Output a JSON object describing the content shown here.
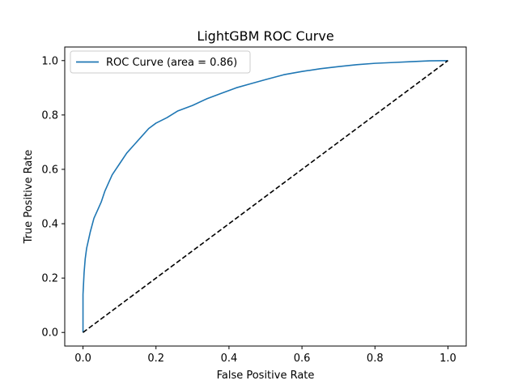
{
  "chart_data": {
    "type": "line",
    "title": "LightGBM ROC Curve",
    "xlabel": "False Positive Rate",
    "ylabel": "True Positive Rate",
    "xlim": [
      -0.05,
      1.05
    ],
    "ylim": [
      -0.05,
      1.05
    ],
    "x_ticks": [
      "0.0",
      "0.2",
      "0.4",
      "0.6",
      "0.8",
      "1.0"
    ],
    "y_ticks": [
      "0.0",
      "0.2",
      "0.4",
      "0.6",
      "0.8",
      "1.0"
    ],
    "grid": false,
    "legend_position": "top-left",
    "series": [
      {
        "name": "ROC Curve (area = 0.86)",
        "color": "#1f77b4",
        "style": "solid",
        "x": [
          0.0,
          0.0,
          0.003,
          0.006,
          0.01,
          0.015,
          0.02,
          0.03,
          0.04,
          0.05,
          0.06,
          0.07,
          0.08,
          0.09,
          0.1,
          0.12,
          0.14,
          0.16,
          0.18,
          0.2,
          0.23,
          0.26,
          0.3,
          0.34,
          0.38,
          0.42,
          0.46,
          0.5,
          0.55,
          0.6,
          0.65,
          0.7,
          0.75,
          0.8,
          0.85,
          0.9,
          0.95,
          1.0
        ],
        "y": [
          0.0,
          0.14,
          0.22,
          0.27,
          0.31,
          0.34,
          0.37,
          0.42,
          0.45,
          0.48,
          0.52,
          0.55,
          0.58,
          0.6,
          0.62,
          0.66,
          0.69,
          0.72,
          0.75,
          0.77,
          0.79,
          0.815,
          0.835,
          0.86,
          0.88,
          0.9,
          0.915,
          0.93,
          0.948,
          0.96,
          0.97,
          0.978,
          0.985,
          0.99,
          0.993,
          0.996,
          0.999,
          1.0
        ]
      },
      {
        "name": "",
        "color": "#000000",
        "style": "dashed",
        "x": [
          0.0,
          1.0
        ],
        "y": [
          0.0,
          1.0
        ]
      }
    ]
  }
}
